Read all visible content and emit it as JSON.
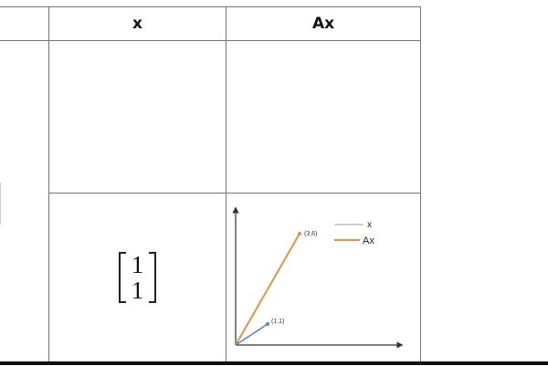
{
  "table": {
    "header": {
      "col_x": "x",
      "col_ax": "Ax"
    },
    "row2": {
      "vector": [
        "1",
        "1"
      ],
      "plot": {
        "point_x_label": "(1,1)",
        "point_ax_label": "(3,6)",
        "legend": {
          "x": "x",
          "ax": "Ax"
        },
        "colors": {
          "x": "#4a86c5",
          "ax": "#e8943a",
          "legend_x": "#bdbdbd"
        }
      }
    }
  },
  "chart_data": {
    "type": "line",
    "series": [
      {
        "name": "x",
        "x": [
          0,
          1
        ],
        "y": [
          0,
          1
        ]
      },
      {
        "name": "Ax",
        "x": [
          0,
          3
        ],
        "y": [
          0,
          6
        ]
      }
    ],
    "annotations": [
      "(1,1)",
      "(3,6)"
    ]
  }
}
